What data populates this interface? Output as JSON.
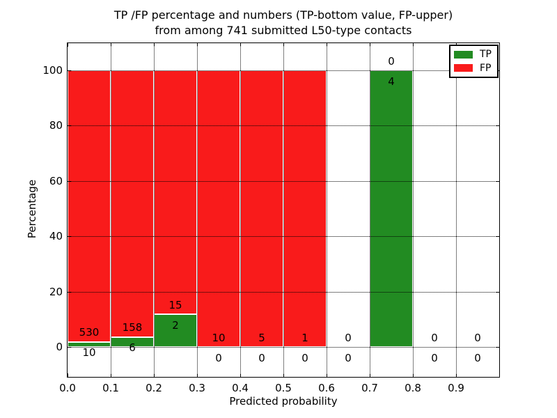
{
  "title": {
    "line1": "TP /FP percentage and numbers (TP-bottom value, FP-upper)",
    "line2": "from among 741 submitted L50-type contacts"
  },
  "axes": {
    "xlabel": "Predicted probability",
    "ylabel": "Percentage"
  },
  "legend": {
    "items": [
      {
        "label": "TP",
        "color": "#228b22"
      },
      {
        "label": "FP",
        "color": "#f91b1b"
      }
    ]
  },
  "chart_data": {
    "type": "bar",
    "subtype": "stacked-percentage-histogram",
    "title": "TP /FP percentage and numbers (TP-bottom value, FP-upper) from among 741 submitted L50-type contacts",
    "xlabel": "Predicted probability",
    "ylabel": "Percentage",
    "total_contacts": 741,
    "xlim": [
      0.0,
      1.0
    ],
    "ylim": [
      -11,
      110
    ],
    "grid": "dotted, both axes, drawn above bars",
    "legend_position": "upper right",
    "xticklabels": [
      "0.0",
      "0.1",
      "0.2",
      "0.3",
      "0.4",
      "0.5",
      "0.6",
      "0.7",
      "0.8",
      "0.9"
    ],
    "yticks": [
      0,
      20,
      40,
      60,
      80,
      100
    ],
    "colors": {
      "tp": "#228b22",
      "fp": "#f91b1b",
      "bar_edge": "#ffffff",
      "grid": "#000000"
    },
    "bins": [
      {
        "x_start": 0.0,
        "x_end": 0.1,
        "tp_count": 10,
        "fp_count": 530,
        "tp_pct": 1.85,
        "fp_pct": 98.15
      },
      {
        "x_start": 0.1,
        "x_end": 0.2,
        "tp_count": 6,
        "fp_count": 158,
        "tp_pct": 3.66,
        "fp_pct": 96.34
      },
      {
        "x_start": 0.2,
        "x_end": 0.3,
        "tp_count": 2,
        "fp_count": 15,
        "tp_pct": 11.76,
        "fp_pct": 88.24
      },
      {
        "x_start": 0.3,
        "x_end": 0.4,
        "tp_count": 0,
        "fp_count": 10,
        "tp_pct": 0,
        "fp_pct": 100
      },
      {
        "x_start": 0.4,
        "x_end": 0.5,
        "tp_count": 0,
        "fp_count": 5,
        "tp_pct": 0,
        "fp_pct": 100
      },
      {
        "x_start": 0.5,
        "x_end": 0.6,
        "tp_count": 0,
        "fp_count": 1,
        "tp_pct": 0,
        "fp_pct": 100
      },
      {
        "x_start": 0.6,
        "x_end": 0.7,
        "tp_count": 0,
        "fp_count": 0,
        "tp_pct": 0,
        "fp_pct": 0
      },
      {
        "x_start": 0.7,
        "x_end": 0.8,
        "tp_count": 4,
        "fp_count": 0,
        "tp_pct": 100,
        "fp_pct": 0
      },
      {
        "x_start": 0.8,
        "x_end": 0.9,
        "tp_count": 0,
        "fp_count": 0,
        "tp_pct": 0,
        "fp_pct": 0
      },
      {
        "x_start": 0.9,
        "x_end": 1.0,
        "tp_count": 0,
        "fp_count": 0,
        "tp_pct": 0,
        "fp_pct": 0
      }
    ]
  }
}
